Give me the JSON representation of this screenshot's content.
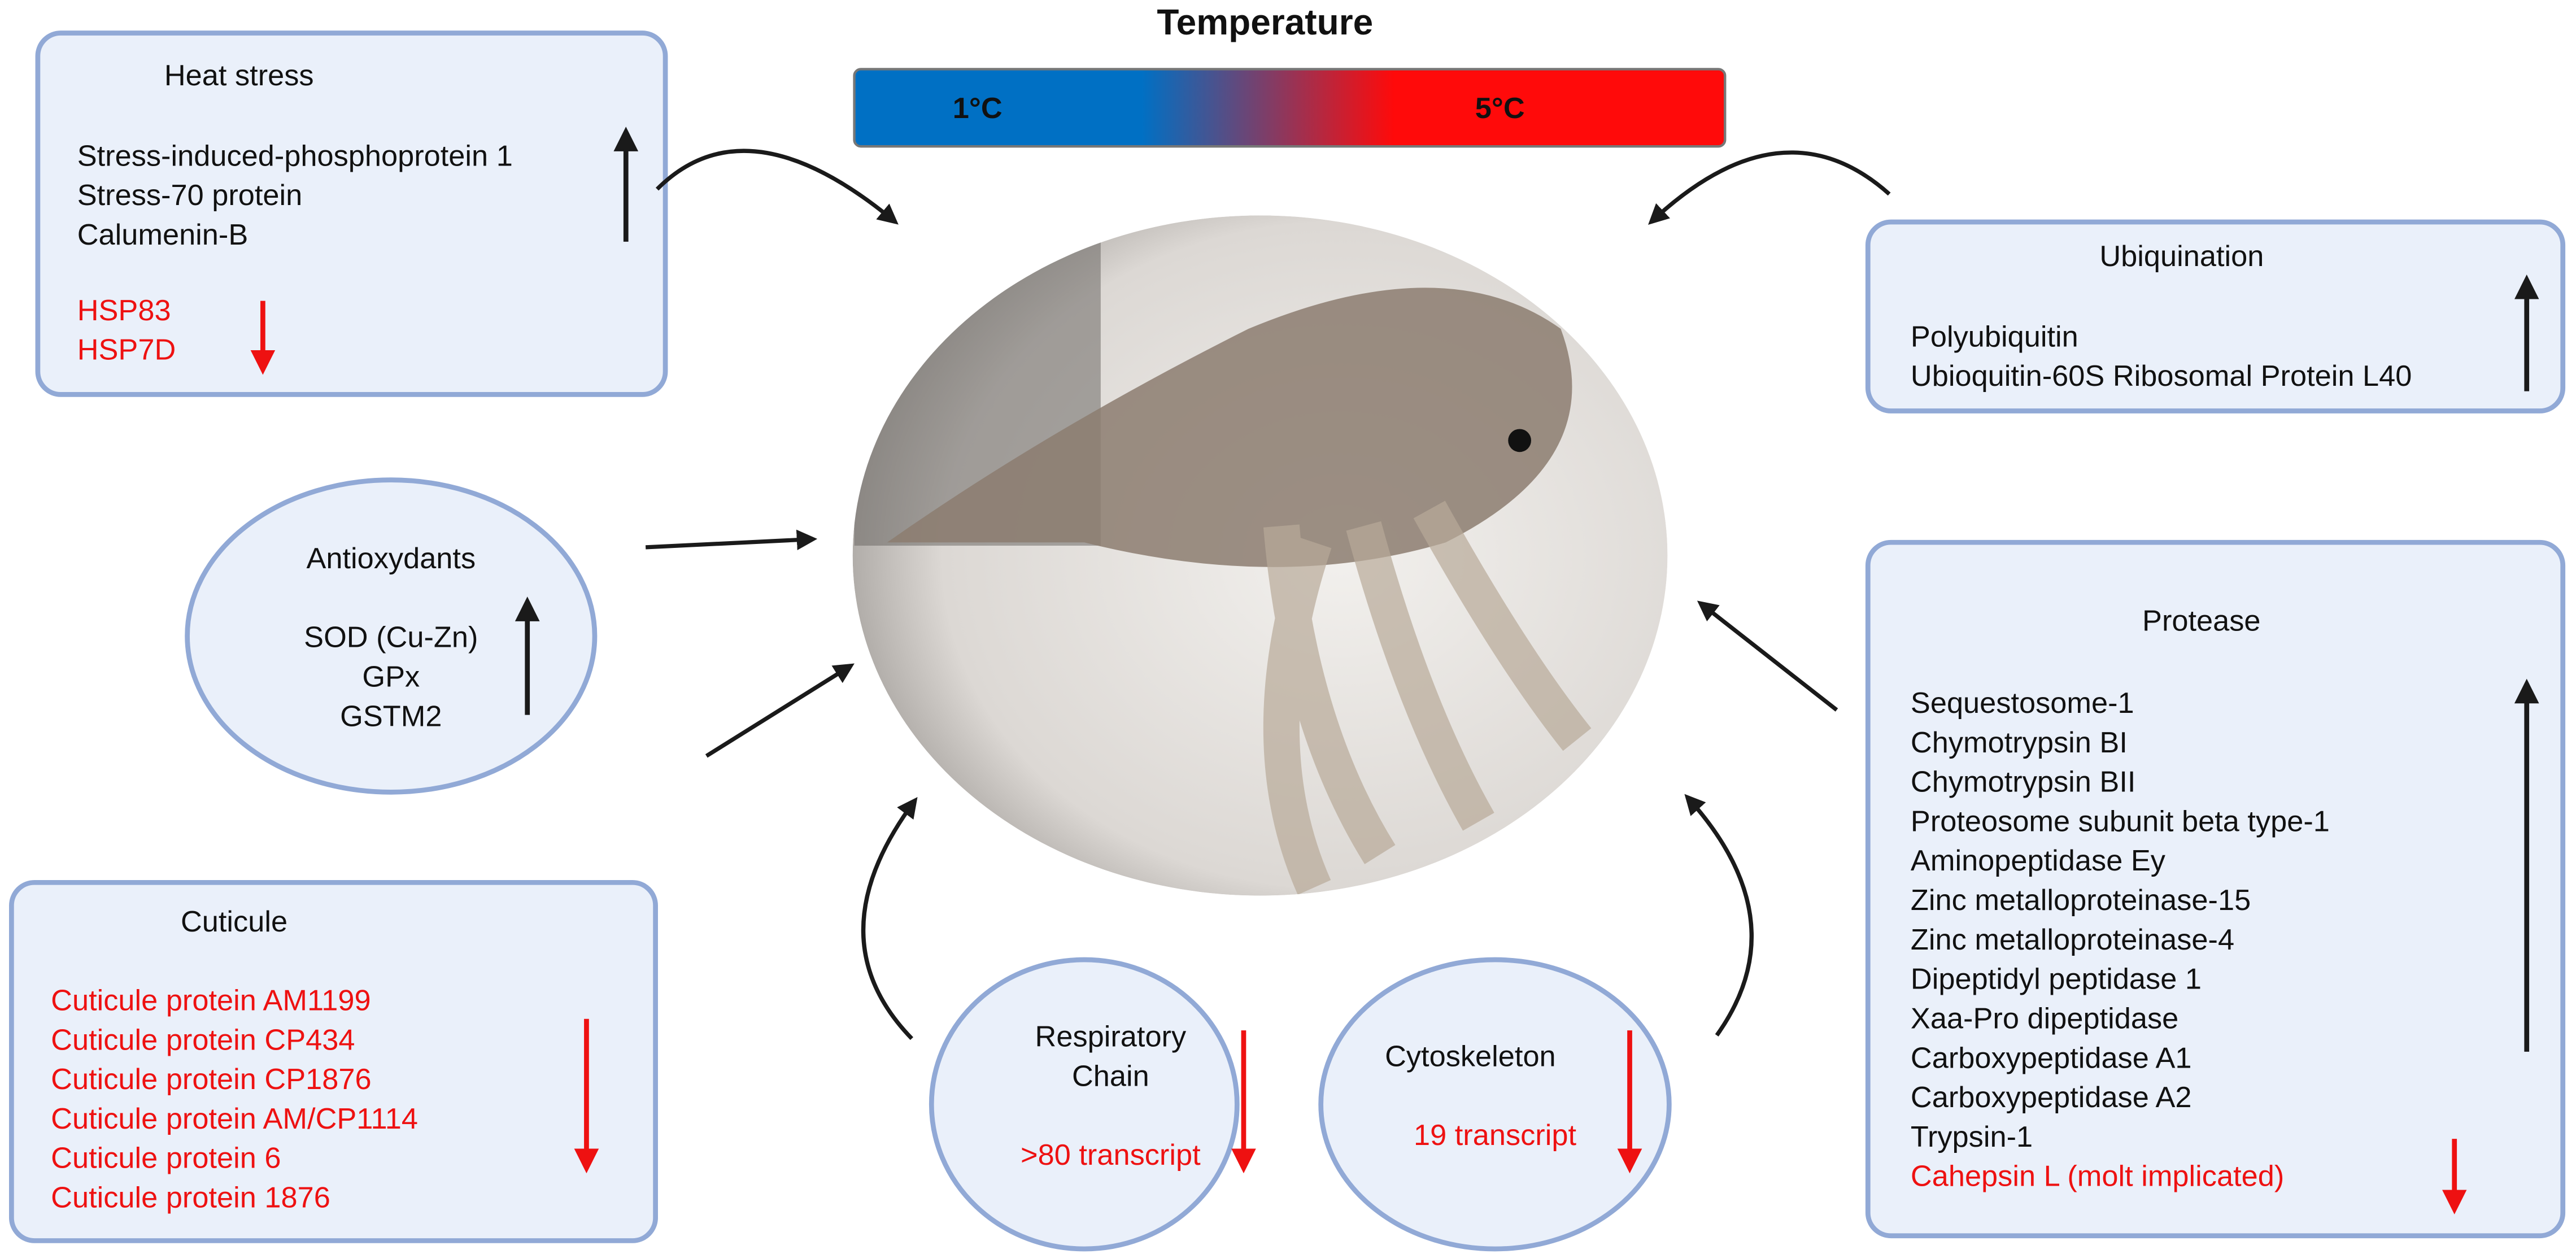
{
  "temperature": {
    "title": "Temperature",
    "low": "1°C",
    "high": "5°C"
  },
  "heat_stress": {
    "title": "Heat stress",
    "up": [
      "Stress-induced-phosphoprotein 1",
      "Stress-70 protein",
      "Calumenin-B"
    ],
    "down": [
      "HSP83",
      "HSP7D"
    ]
  },
  "ubiquination": {
    "title": "Ubiquination",
    "up": [
      "Polyubiquitin",
      "Ubioquitin-60S Ribosomal Protein L40"
    ]
  },
  "antioxydants": {
    "title": "Antioxydants",
    "up": [
      "SOD (Cu-Zn)",
      "GPx",
      "GSTM2"
    ]
  },
  "protease": {
    "title": "Protease",
    "up": [
      "Sequestosome-1",
      "Chymotrypsin BI",
      "Chymotrypsin BII",
      "Proteosome subunit beta type-1",
      "Aminopeptidase Ey",
      "Zinc metalloproteinase-15",
      "Zinc metalloproteinase-4",
      "Dipeptidyl peptidase 1",
      "Xaa-Pro dipeptidase",
      "Carboxypeptidase A1",
      "Carboxypeptidase A2",
      "Trypsin-1"
    ],
    "down": [
      "Cahepsin L (molt implicated)"
    ]
  },
  "cuticule": {
    "title": "Cuticule",
    "down": [
      "Cuticule protein AM1199",
      "Cuticule protein CP434",
      "Cuticule protein CP1876",
      "Cuticule protein AM/CP1114",
      "Cuticule protein 6",
      "Cuticule protein 1876"
    ]
  },
  "respiratory_chain": {
    "title": [
      "Respiratory",
      "Chain"
    ],
    "down": [
      ">80 transcript"
    ]
  },
  "cytoskeleton": {
    "title": [
      "Cytoskeleton"
    ],
    "down": [
      "19 transcript"
    ]
  }
}
